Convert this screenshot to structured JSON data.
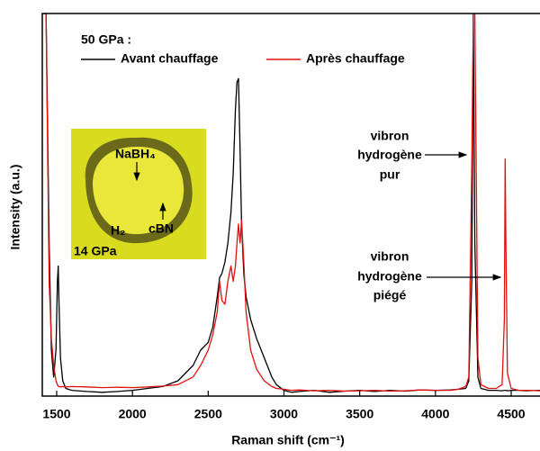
{
  "chart_data": {
    "type": "line",
    "xlabel": "Raman shift (cm⁻¹)",
    "ylabel": "Intensity (a.u.)",
    "xlim": [
      1405,
      4690
    ],
    "ylim": [
      0,
      100
    ],
    "xticks": [
      1500,
      2000,
      2500,
      3000,
      3500,
      4000,
      4500
    ],
    "legend_title": "50 GPa :",
    "x": [
      1410,
      1430,
      1450,
      1465,
      1480,
      1495,
      1505,
      1510,
      1515,
      1525,
      1540,
      1560,
      1600,
      1700,
      1800,
      1900,
      2000,
      2100,
      2200,
      2300,
      2400,
      2450,
      2500,
      2530,
      2560,
      2575,
      2590,
      2610,
      2630,
      2650,
      2665,
      2680,
      2690,
      2700,
      2710,
      2720,
      2735,
      2750,
      2780,
      2820,
      2870,
      2920,
      2950,
      3000,
      3050,
      3100,
      3200,
      3300,
      3400,
      3500,
      3600,
      3700,
      3800,
      3900,
      4000,
      4100,
      4150,
      4200,
      4220,
      4240,
      4250,
      4260,
      4280,
      4300,
      4350,
      4400,
      4440,
      4455,
      4460,
      4465,
      4475,
      4500,
      4550,
      4600,
      4690
    ],
    "series": [
      {
        "name": "Avant chauffage",
        "color": "#000000",
        "values": [
          100,
          100,
          40,
          12,
          5,
          12,
          30,
          34,
          25,
          10,
          4,
          2,
          1.5,
          1.2,
          1,
          1.2,
          1.5,
          2,
          2.5,
          4,
          8,
          12,
          14,
          18,
          26,
          31,
          32,
          35,
          40,
          48,
          58,
          75,
          82,
          83,
          65,
          45,
          32,
          26,
          20,
          15,
          10,
          5,
          3,
          1.5,
          1,
          1.2,
          1.5,
          1,
          1.3,
          1.5,
          1.2,
          1.5,
          1.3,
          1.6,
          1.5,
          1.6,
          1.8,
          2,
          4,
          30,
          100,
          40,
          5,
          2,
          1.5,
          1.5,
          1.4,
          1.5,
          1.5,
          1.5,
          1.4,
          1.5,
          1.5,
          1.4,
          1.5
        ]
      },
      {
        "name": "Après chauffage",
        "color": "#e01010",
        "values": [
          100,
          100,
          30,
          15,
          8,
          4,
          3,
          2.6,
          2.5,
          2.4,
          2.5,
          2.4,
          2.5,
          2.4,
          2.2,
          2.3,
          2.2,
          2.4,
          2.6,
          3,
          5,
          8,
          12,
          16,
          22,
          30,
          25,
          24,
          30,
          34,
          30,
          34,
          40,
          45,
          40,
          46,
          35,
          22,
          12,
          7,
          4,
          2.5,
          2,
          1.8,
          1.5,
          1.6,
          1.4,
          1.5,
          1.3,
          1.4,
          1.5,
          1.3,
          1.4,
          1.6,
          1.5,
          1.5,
          1.8,
          2.5,
          5,
          60,
          100,
          100,
          10,
          3,
          2,
          2,
          3,
          20,
          62,
          40,
          6,
          2,
          1.5,
          1.5,
          1.4
        ]
      }
    ],
    "annotations": [
      {
        "lines": [
          "vibron",
          "hydrogène",
          "pur"
        ]
      },
      {
        "lines": [
          "vibron",
          "hydrogène",
          "piégé"
        ]
      }
    ],
    "inset": {
      "labels": [
        "NaBH₄",
        "H₂",
        "cBN",
        "14 GPa"
      ]
    }
  }
}
